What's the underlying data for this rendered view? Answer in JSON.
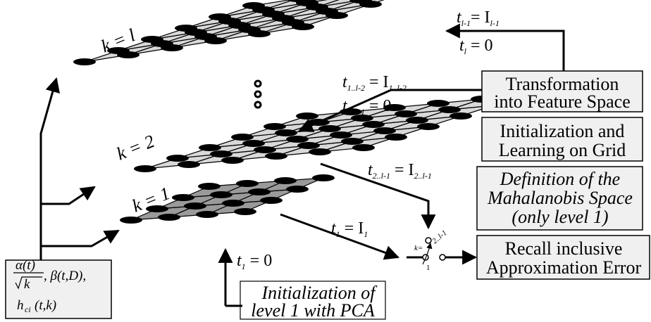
{
  "layers": {
    "top_label": "k = l",
    "mid_label": "k = 2",
    "bottom_label": "k = 1"
  },
  "ellipsis": "ooo",
  "boxes": {
    "transformation": [
      "Transformation",
      "into Feature Space"
    ],
    "initialization_learning": [
      "Initialization and",
      "Learning on Grid"
    ],
    "mahalanobis": [
      "Definition of the",
      "Mahalanobis Space",
      "(only level 1)"
    ],
    "recall": [
      "Recall inclusive",
      "Approximation Error"
    ],
    "pca": [
      "Initialization of",
      "level 1 with PCA"
    ]
  },
  "equations": {
    "top_1": {
      "t": "t",
      "sub": "l-1",
      "rhs": "= I",
      "rhs_sub": "l-1"
    },
    "top_2": {
      "t": "t",
      "sub": "l",
      "rhs": " = 0"
    },
    "mid_1": {
      "t": "t",
      "sub": "1..l-2",
      "rhs": " = I",
      "rhs_sub": "1..l-2"
    },
    "mid_2": {
      "t": "t",
      "sub": "2..l-1",
      "rhs": " = 0"
    },
    "low_1": {
      "t": "t",
      "sub": "2..l-1",
      "rhs": " = I",
      "rhs_sub": "2..l-1"
    },
    "low_2": {
      "t": "t",
      "sub": "1",
      "rhs": " = I",
      "rhs_sub": "1"
    },
    "pca_eq": {
      "t": "t",
      "sub": "1",
      "rhs": " = 0"
    }
  },
  "switch": {
    "k_label": "k=",
    "upper_label": "2..l-1",
    "lower_label": "1"
  },
  "params": {
    "alpha": "α(t)",
    "sqrt_k": "k",
    "beta": ", β(t,D),",
    "h": "h",
    "h_sub": "ci",
    "h_args": "(t,k)"
  }
}
